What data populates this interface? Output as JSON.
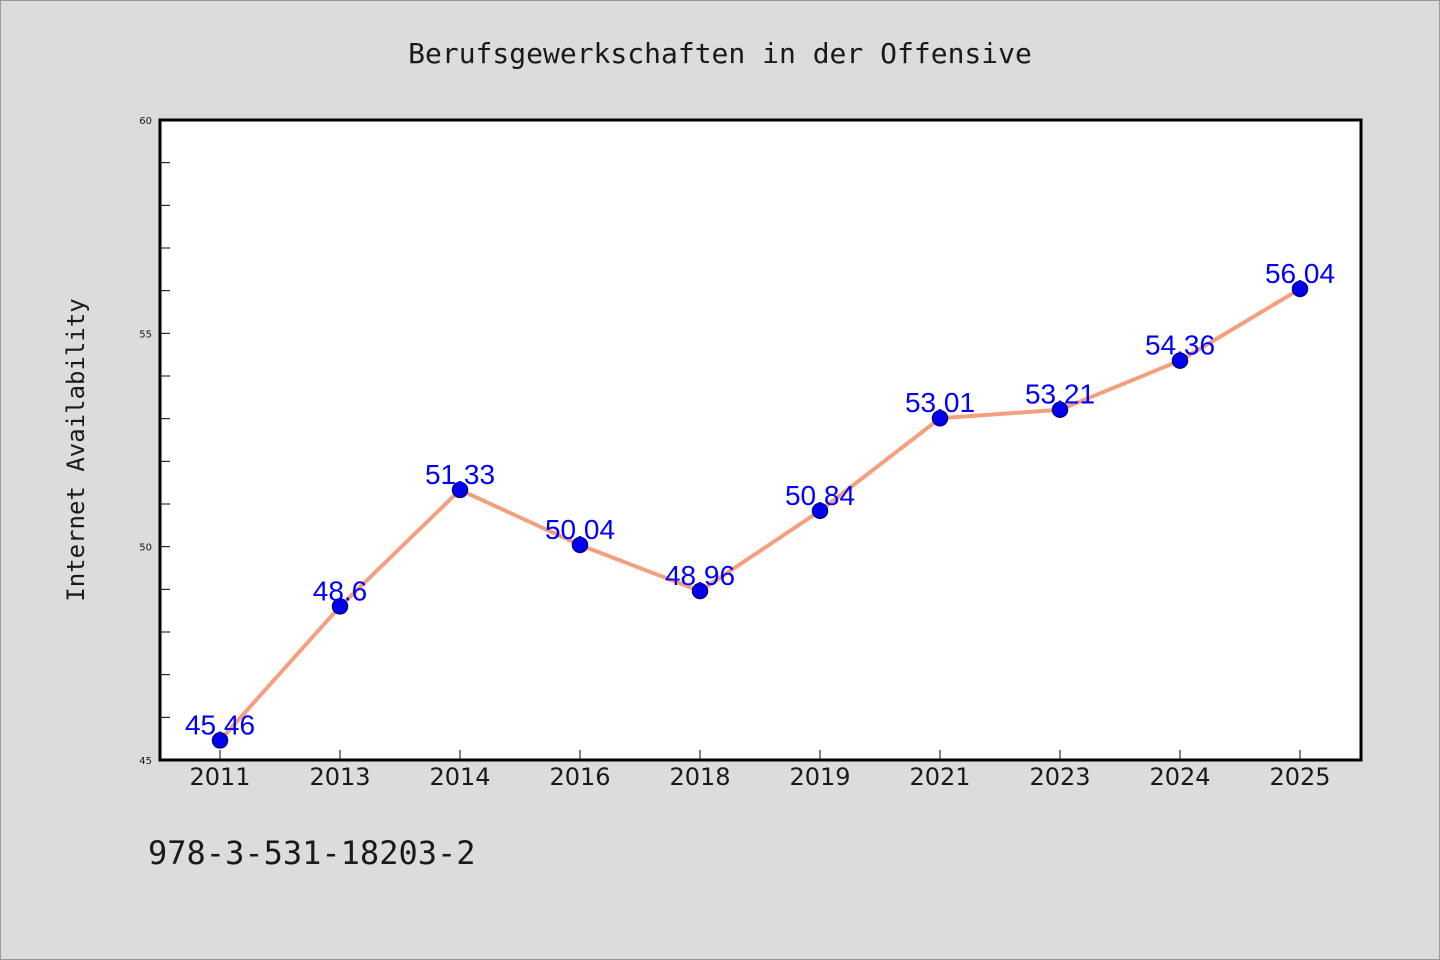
{
  "chart_data": {
    "type": "line",
    "title": "Berufsgewerkschaften in der Offensive",
    "xlabel": "",
    "ylabel": "Internet Availability",
    "categories": [
      "2011",
      "2013",
      "2014",
      "2016",
      "2018",
      "2019",
      "2021",
      "2023",
      "2024",
      "2025"
    ],
    "series": [
      {
        "values": [
          45.46,
          48.6,
          51.33,
          50.04,
          48.96,
          50.84,
          53.01,
          53.21,
          54.36,
          56.04
        ],
        "data_labels": [
          "45.46",
          "48.6",
          "51.33",
          "50.04",
          "48.96",
          "50.84",
          "53.01",
          "53.21",
          "54.36",
          "56.04"
        ]
      }
    ],
    "ylim": [
      45,
      60
    ],
    "yticks": [
      "45",
      "50",
      "55",
      "60"
    ],
    "grid": false,
    "legend": "none",
    "colors": {
      "line": "#f4a07f",
      "marker": "#0000ee",
      "marker_edge": "#00008b",
      "data_label": "#0000ff",
      "background": "#dcdcdc",
      "plot_area": "#ffffff"
    }
  },
  "footer": {
    "text": "978-3-531-18203-2"
  }
}
